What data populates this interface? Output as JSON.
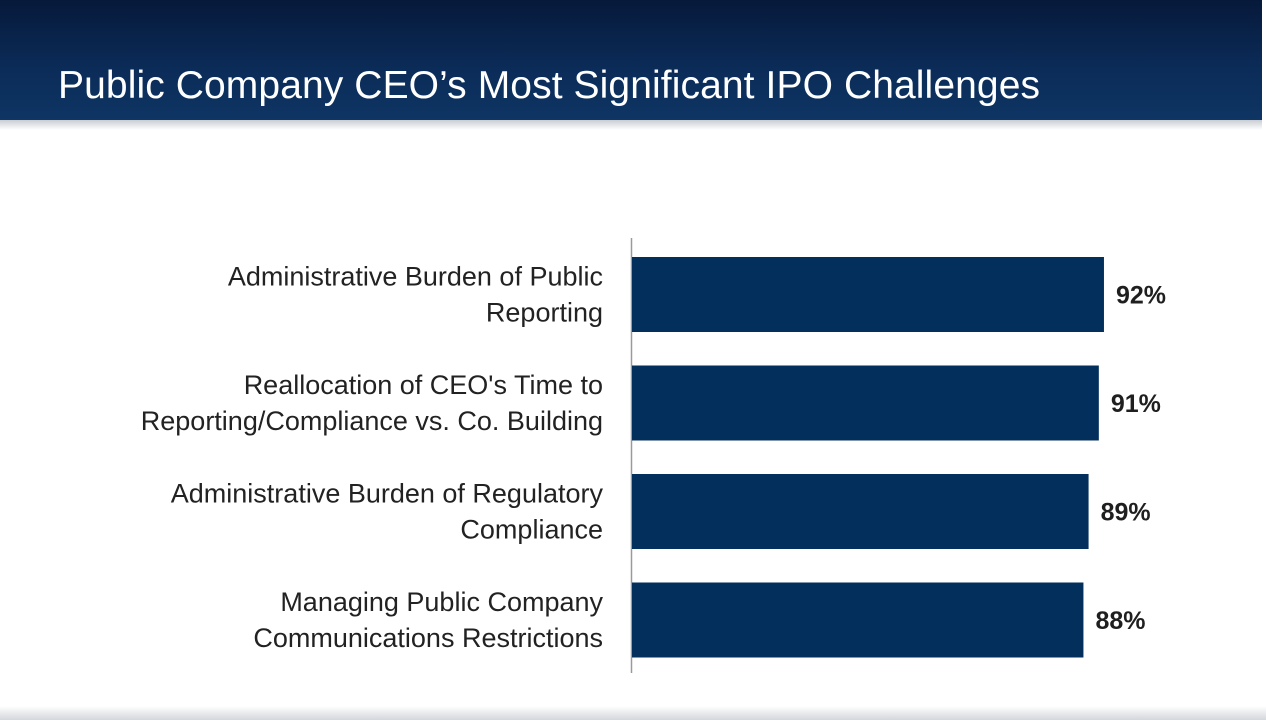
{
  "slide": {
    "title": "Public Company CEO’s Most Significant IPO Challenges"
  },
  "colors": {
    "header": "#0b2b57",
    "bar": "#032f5c",
    "axis": "#9a9a9a",
    "text": "#222222"
  },
  "chart_data": {
    "type": "bar",
    "orientation": "horizontal",
    "title": "",
    "xlabel": "",
    "ylabel": "",
    "categories": [
      [
        "Administrative Burden of Public",
        "Reporting"
      ],
      [
        "Reallocation of CEO's Time to",
        "Reporting/Compliance vs. Co. Building"
      ],
      [
        "Administrative Burden of Regulatory",
        "Compliance"
      ],
      [
        "Managing Public Company",
        "Communications Restrictions"
      ]
    ],
    "values": [
      92,
      91,
      89,
      88
    ],
    "value_labels": [
      "92%",
      "91%",
      "89%",
      "88%"
    ],
    "xlim": [
      0,
      100
    ],
    "grid": false,
    "legend": "none"
  }
}
